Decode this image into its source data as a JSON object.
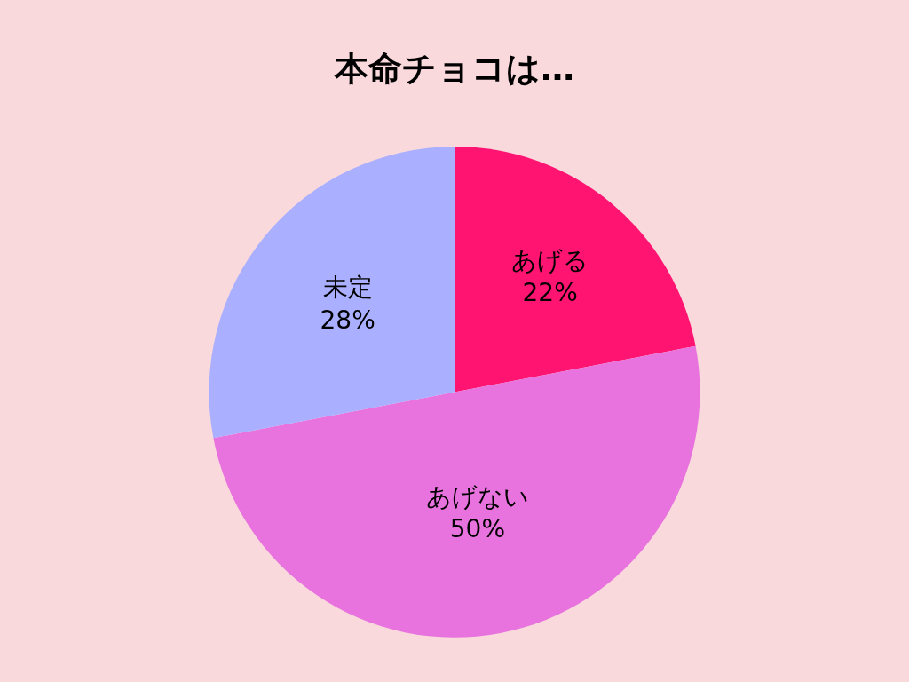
{
  "chart_data": {
    "type": "pie",
    "title": "本命チョコは…",
    "categories": [
      "あげる",
      "あげない",
      "未定"
    ],
    "values": [
      22,
      50,
      28
    ],
    "value_labels": [
      "22%",
      "50%",
      "28%"
    ],
    "colors": [
      "#ff1472",
      "#e873de",
      "#aab0ff"
    ],
    "legend": false
  }
}
